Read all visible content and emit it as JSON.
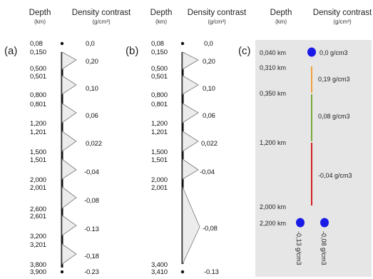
{
  "headers": {
    "depth": "Depth",
    "depth_unit": "(km)",
    "density": "Density contrast",
    "density_unit": "(g/cm³)"
  },
  "panel_a": {
    "label": "(a)",
    "depths": [
      "0,08",
      "0,150",
      "0,500",
      "0,501",
      "0,800",
      "0,801",
      "1,200",
      "1,201",
      "1,500",
      "1,501",
      "2,000",
      "2,001",
      "2,600",
      "2,601",
      "3,200",
      "3,201",
      "3,800",
      "3,900"
    ],
    "contrasts": [
      "0,0",
      "0,20",
      "0,10",
      "0,06",
      "0,022",
      "-0,04",
      "-0,08",
      "-0.13",
      "-0,18",
      "-0.23"
    ]
  },
  "panel_b": {
    "label": "(b)",
    "depths": [
      "0,08",
      "0,150",
      "0,500",
      "0,501",
      "0,800",
      "0,801",
      "1,200",
      "1,201",
      "1,500",
      "1,501",
      "2,000",
      "2,001",
      "3,400",
      "3,410"
    ],
    "contrasts": [
      "0,0",
      "0,20",
      "0,10",
      "0,06",
      "0,022",
      "-0,04",
      "-0,08",
      "-0.13"
    ]
  },
  "panel_c": {
    "label": "(c)",
    "depths": [
      "0,040  km",
      "0,310  km",
      "0,350  km",
      "1,200  km",
      "2,000  km",
      "2,200  km"
    ],
    "densities": [
      "0,0  g/cm3",
      "0,19  g/cm3",
      "0,08  g/cm3",
      "-0,04  g/cm3",
      "-0,13  g/cm3",
      "-0,08  g/cm3"
    ],
    "colors": {
      "dot": "#1a1ae6",
      "segment_019": "#f0a040",
      "segment_008": "#7aa83a",
      "segment_neg004": "#d42020",
      "background": "#e6e6e6"
    }
  }
}
